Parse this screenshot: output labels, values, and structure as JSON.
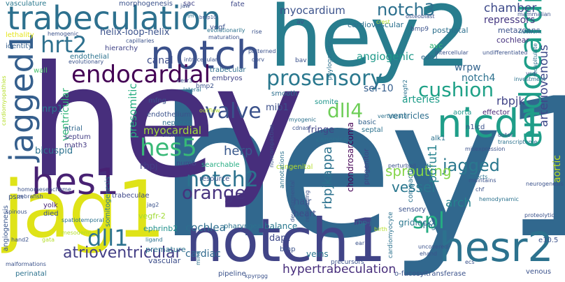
{
  "words": [
    {
      "text": "hey1",
      "color": "#31688e"
    },
    {
      "text": "hey",
      "color": "#472e7c"
    },
    {
      "text": "hey2",
      "color": "#287d8e"
    },
    {
      "text": "jag1",
      "color": "#dfe318"
    },
    {
      "text": "notch1",
      "color": "#414487"
    },
    {
      "text": "notch",
      "color": "#3b518b"
    },
    {
      "text": "trabeculation",
      "color": "#2d708e"
    },
    {
      "text": "hesr2",
      "color": "#2c728e"
    },
    {
      "text": "nicd1",
      "color": "#1f9e89"
    },
    {
      "text": "endocardium",
      "color": "#1f9e89"
    },
    {
      "text": "jagged1",
      "color": "#355f8d"
    },
    {
      "text": "hes1",
      "color": "#482173"
    },
    {
      "text": "endocardial",
      "color": "#440154"
    },
    {
      "text": "prosensory",
      "color": "#2a788e"
    },
    {
      "text": "notch2",
      "color": "#2c728e"
    },
    {
      "text": "hrt2",
      "color": "#2d708e"
    },
    {
      "text": "notch3",
      "color": "#2d708e"
    },
    {
      "text": "valve",
      "color": "#3b528b"
    },
    {
      "text": "hes5",
      "color": "#38b977"
    },
    {
      "text": "dll4",
      "color": "#6ece58"
    },
    {
      "text": "cushion",
      "color": "#1fa187"
    },
    {
      "text": "jagged",
      "color": "#2a788e"
    },
    {
      "text": "orange",
      "color": "#46327e"
    },
    {
      "text": "dll1",
      "color": "#2c728e"
    },
    {
      "text": "spl",
      "color": "#25ac82"
    },
    {
      "text": "atrioventricular",
      "color": "#433e85"
    },
    {
      "text": "myocardium",
      "color": "#3b528b"
    },
    {
      "text": "chamber",
      "color": "#3e4a89"
    },
    {
      "text": "repressors",
      "color": "#453781"
    },
    {
      "text": "rbpjkappa",
      "color": "#2c728e"
    },
    {
      "text": "arteriovenous",
      "color": "#3e4989"
    },
    {
      "text": "hypertrabeculation",
      "color": "#472d7b"
    },
    {
      "text": "rbpjk",
      "color": "#414487"
    },
    {
      "text": "sprouting",
      "color": "#86d549"
    },
    {
      "text": "vessel",
      "color": "#2a778e"
    },
    {
      "text": "pofut1",
      "color": "#26828e"
    },
    {
      "text": "angiogenic",
      "color": "#1f9a8a"
    },
    {
      "text": "notch4",
      "color": "#2d718e"
    },
    {
      "text": "presomitic",
      "color": "#27ad81"
    },
    {
      "text": "ventricular",
      "color": "#32b67a"
    },
    {
      "text": "herp",
      "color": "#38588c"
    },
    {
      "text": "cochlea",
      "color": "#2e6e8e"
    },
    {
      "text": "arch",
      "color": "#26828e"
    },
    {
      "text": "myocardial",
      "color": "#a0da39"
    },
    {
      "text": "sel-10",
      "color": "#355e8d"
    },
    {
      "text": "helix-loop-helix",
      "color": "#3b528b"
    },
    {
      "text": "canal",
      "color": "#3d4e8a"
    },
    {
      "text": "wrpw",
      "color": "#33638d"
    },
    {
      "text": "cardiac",
      "color": "#306a8e"
    },
    {
      "text": "ventricles",
      "color": "#2e6f8e"
    },
    {
      "text": "arteries",
      "color": "#1e9c89"
    },
    {
      "text": "dapt",
      "color": "#3e4989"
    },
    {
      "text": "aortic",
      "color": "#c2df23"
    },
    {
      "text": "metazoans",
      "color": "#3b528b"
    },
    {
      "text": "bicuspid",
      "color": "#2c728e"
    },
    {
      "text": "fringe",
      "color": "#414487"
    },
    {
      "text": "nrp1",
      "color": "#2a788e"
    },
    {
      "text": "rbpj",
      "color": "#433e85"
    },
    {
      "text": "mib1",
      "color": "#3c4f8a"
    },
    {
      "text": "cardiovascular",
      "color": "#2c718e"
    },
    {
      "text": "postnatal",
      "color": "#2d708e"
    },
    {
      "text": "avc",
      "color": "#35b779"
    },
    {
      "text": "cochlear",
      "color": "#46327e"
    },
    {
      "text": "chondrosarcoma",
      "color": "#440154"
    },
    {
      "text": "premature",
      "color": "#2c728e"
    },
    {
      "text": "ephrinb2",
      "color": "#21918c"
    },
    {
      "text": "vegfr-2",
      "color": "#a2da37"
    },
    {
      "text": "hair",
      "color": "#3a548c"
    },
    {
      "text": "balance",
      "color": "#2a788e"
    },
    {
      "text": "veins",
      "color": "#2a788e"
    },
    {
      "text": "heart",
      "color": "#3e4a89"
    },
    {
      "text": "gridlock",
      "color": "#2a778e"
    },
    {
      "text": "lfng",
      "color": "#2e6e8e"
    },
    {
      "text": "edn1",
      "color": "#31688e"
    },
    {
      "text": "vascular",
      "color": "#3d4e8a"
    },
    {
      "text": "somitogenesis",
      "color": "#2a788e"
    },
    {
      "text": "trabeculae",
      "color": "#3f4889"
    },
    {
      "text": "vasculature",
      "color": "#2a788e"
    },
    {
      "text": "morphogenesis",
      "color": "#3b528b"
    },
    {
      "text": "sac",
      "color": "#404387"
    },
    {
      "text": "fate",
      "color": "#3e4989"
    },
    {
      "text": "lethality",
      "color": "#e5e419"
    },
    {
      "text": "identity",
      "color": "#355f8d"
    },
    {
      "text": "endothelial",
      "color": "#2c728e"
    },
    {
      "text": "wall",
      "color": "#4ac16d"
    },
    {
      "text": "hierarchy",
      "color": "#404387"
    },
    {
      "text": "vegf",
      "color": "#3b528b"
    },
    {
      "text": "embryos",
      "color": "#404387"
    },
    {
      "text": "trabecular",
      "color": "#2e6e8e"
    },
    {
      "text": "smooth",
      "color": "#2e6f8e"
    },
    {
      "text": "somite",
      "color": "#1f968b"
    },
    {
      "text": "basic",
      "color": "#33638d"
    },
    {
      "text": "septal",
      "color": "#2c728e"
    },
    {
      "text": "aorta",
      "color": "#1f978b"
    },
    {
      "text": "effector",
      "color": "#482475"
    },
    {
      "text": "n1icd",
      "color": "#3b528b"
    },
    {
      "text": "alk1",
      "color": "#2c728e"
    },
    {
      "text": "canonical",
      "color": "#2c728e"
    },
    {
      "text": "progenitor",
      "color": "#414487"
    },
    {
      "text": "compaction",
      "color": "#2c728e"
    },
    {
      "text": "sensory",
      "color": "#3b528b"
    },
    {
      "text": "atrial",
      "color": "#31688e"
    },
    {
      "text": "septum",
      "color": "#433e85"
    },
    {
      "text": "math3",
      "color": "#443983"
    },
    {
      "text": "mfng",
      "color": "#3b528b"
    },
    {
      "text": "endothelium",
      "color": "#3b528b"
    },
    {
      "text": "nephron",
      "color": "#2d708e"
    },
    {
      "text": "numb",
      "color": "#3e4989"
    },
    {
      "text": "psm",
      "color": "#3b528b"
    },
    {
      "text": "yolk",
      "color": "#482475"
    },
    {
      "text": "died",
      "color": "#3b528b"
    },
    {
      "text": "angiogenesis",
      "color": "#39568c"
    },
    {
      "text": "perinatal",
      "color": "#2c728e"
    },
    {
      "text": "pipeline",
      "color": "#3b528b"
    },
    {
      "text": "bmp",
      "color": "#3b528b"
    },
    {
      "text": "o-fucosyltransferase",
      "color": "#3b528b"
    },
    {
      "text": "venous",
      "color": "#3b528b"
    },
    {
      "text": "e10.5",
      "color": "#3b528b"
    },
    {
      "text": "congenital",
      "color": "#b5de2b"
    },
    {
      "text": "annotations",
      "color": "#2c728e"
    },
    {
      "text": "resource",
      "color": "#3b528b"
    },
    {
      "text": "searchable",
      "color": "#25ac82"
    },
    {
      "text": "pharyngeal",
      "color": "#2c728e"
    },
    {
      "text": "rbp-j",
      "color": "#2c728e"
    },
    {
      "text": "precursors",
      "color": "#3b528b"
    },
    {
      "text": "cardiomyocyte",
      "color": "#2c728e"
    },
    {
      "text": "bmp2",
      "color": "#3b528b"
    },
    {
      "text": "bmp9",
      "color": "#3b528b"
    },
    {
      "text": "bav",
      "color": "#3b528b"
    },
    {
      "text": "phylogenetic",
      "color": "#2c728e"
    },
    {
      "text": "mammalian",
      "color": "#3b528b"
    },
    {
      "text": "network",
      "color": "#2c728e"
    },
    {
      "text": "undifferentiated",
      "color": "#3b528b"
    },
    {
      "text": "investment",
      "color": "#2c728e"
    },
    {
      "text": "vsd",
      "color": "#3b528b"
    },
    {
      "text": "recapitulate",
      "color": "#2c728e"
    },
    {
      "text": "intercellular",
      "color": "#3b528b"
    },
    {
      "text": "osteoblast",
      "color": "#3b528b"
    },
    {
      "text": "crest",
      "color": "#b5de2b"
    },
    {
      "text": "av",
      "color": "#3b528b"
    },
    {
      "text": "vegfr2",
      "color": "#2c728e"
    },
    {
      "text": "myogenic",
      "color": "#2c728e"
    },
    {
      "text": "cdnas",
      "color": "#3b528b"
    },
    {
      "text": "vertebrate",
      "color": "#2c728e"
    },
    {
      "text": "outer",
      "color": "#3b528b"
    },
    {
      "text": "transcriptome",
      "color": "#2c728e"
    },
    {
      "text": "misexpression",
      "color": "#3b528b"
    },
    {
      "text": "perturbed",
      "color": "#3b528b"
    },
    {
      "text": "defects",
      "color": "#2c728e"
    },
    {
      "text": "maintains",
      "color": "#3b528b"
    },
    {
      "text": "chf",
      "color": "#3b528b"
    },
    {
      "text": "hemodynamic",
      "color": "#2c728e"
    },
    {
      "text": "neurogenesis",
      "color": "#3b528b"
    },
    {
      "text": "proteolytic",
      "color": "#3b528b"
    },
    {
      "text": "uncovered",
      "color": "#3b528b"
    },
    {
      "text": "ehand",
      "color": "#3b528b"
    },
    {
      "text": "ecs",
      "color": "#3b528b"
    },
    {
      "text": "birth",
      "color": "#b5de2b"
    },
    {
      "text": "ear",
      "color": "#3b528b"
    },
    {
      "text": "remodeling",
      "color": "#3b528b"
    },
    {
      "text": "developmental",
      "color": "#3b528b"
    },
    {
      "text": "noncompaction",
      "color": "#3b528b"
    },
    {
      "text": "lateral",
      "color": "#2c728e"
    },
    {
      "text": "hesr3",
      "color": "#3b528b"
    },
    {
      "text": "intracellular",
      "color": "#3b528b"
    },
    {
      "text": "skeletal",
      "color": "#3b528b"
    },
    {
      "text": "outflow",
      "color": "#b5de2b"
    },
    {
      "text": "homo",
      "color": "#3b528b"
    },
    {
      "text": "zebrafish",
      "color": "#3b528b"
    },
    {
      "text": "mesenchyme",
      "color": "#3b528b"
    },
    {
      "text": "spinous",
      "color": "#3b528b"
    },
    {
      "text": "spatiotemporal",
      "color": "#2c728e"
    },
    {
      "text": "mesoderm",
      "color": "#b5de2b"
    },
    {
      "text": "hand2",
      "color": "#3b528b"
    },
    {
      "text": "gata",
      "color": "#b5de2b"
    },
    {
      "text": "ligand",
      "color": "#2c728e"
    },
    {
      "text": "malformations",
      "color": "#3b528b"
    },
    {
      "text": "mind",
      "color": "#2c728e"
    },
    {
      "text": "kpyrpgg",
      "color": "#3b528b"
    },
    {
      "text": "jag2",
      "color": "#3b528b"
    },
    {
      "text": "cardiomyopathies",
      "color": "#b5de2b"
    },
    {
      "text": "evolutionary",
      "color": "#3b528b"
    },
    {
      "text": "evolutionarily",
      "color": "#2c728e"
    },
    {
      "text": "maturation",
      "color": "#3b528b"
    },
    {
      "text": "hemogenic",
      "color": "#3b528b"
    },
    {
      "text": "capillaries",
      "color": "#3b528b"
    },
    {
      "text": "rise",
      "color": "#3b528b"
    },
    {
      "text": "patterned",
      "color": "#3b528b"
    },
    {
      "text": "dorv",
      "color": "#3b528b"
    },
    {
      "text": "jaw",
      "color": "#3b528b"
    },
    {
      "text": "bmp10",
      "color": "#3b528b"
    },
    {
      "text": "tm",
      "color": "#2c728e"
    }
  ]
}
